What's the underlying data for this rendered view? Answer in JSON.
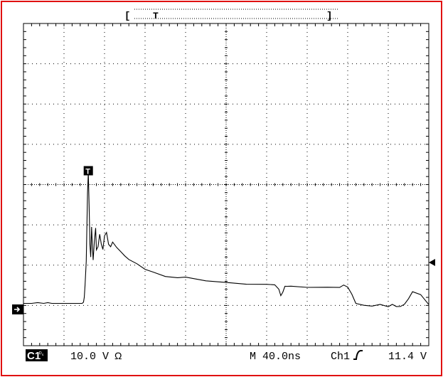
{
  "chart_data": {
    "type": "line",
    "title": "",
    "xlabel": "",
    "ylabel": "",
    "x_divisions": 10,
    "y_divisions": 8,
    "grid": "dotted",
    "xlim": [
      0,
      10
    ],
    "ylim": [
      -4,
      4
    ],
    "trigger_marker": "T",
    "channel_marker": "1",
    "series": [
      {
        "x": [
          0.0,
          0.2,
          0.35,
          0.5,
          0.6,
          0.7,
          0.8,
          1.0,
          1.2,
          1.3,
          1.4,
          1.45,
          1.48,
          1.5,
          1.52,
          1.55,
          1.58,
          1.6,
          1.62,
          1.64,
          1.66,
          1.68,
          1.7,
          1.72,
          1.75,
          1.78,
          1.8,
          1.84,
          1.88,
          1.92,
          1.96,
          2.0,
          2.05,
          2.1,
          2.15,
          2.2,
          2.3,
          2.4,
          2.5,
          2.6,
          2.8,
          3.0,
          3.2,
          3.5,
          3.8,
          4.0,
          4.5,
          5.0,
          5.5,
          6.0,
          6.2,
          6.3,
          6.35,
          6.4,
          6.45,
          6.5,
          6.6,
          7.0,
          7.5,
          7.8,
          7.9,
          8.0,
          8.1,
          8.2,
          8.4,
          8.6,
          8.8,
          9.0,
          9.1,
          9.2,
          9.3,
          9.4,
          9.5,
          9.6,
          9.8,
          10.0
        ],
        "y": [
          -2.95,
          -2.95,
          -2.93,
          -2.95,
          -2.93,
          -2.95,
          -2.95,
          -2.95,
          -2.95,
          -2.95,
          -2.95,
          -2.95,
          -2.92,
          -2.8,
          -2.5,
          -1.9,
          -0.2,
          0.3,
          -0.5,
          -1.5,
          -1.8,
          -1.05,
          -1.5,
          -1.85,
          -1.35,
          -1.05,
          -1.6,
          -1.5,
          -1.2,
          -1.45,
          -1.65,
          -1.3,
          -1.2,
          -1.5,
          -1.55,
          -1.45,
          -1.6,
          -1.7,
          -1.75,
          -1.85,
          -1.95,
          -2.1,
          -2.15,
          -2.25,
          -2.3,
          -2.33,
          -2.4,
          -2.45,
          -2.48,
          -2.48,
          -2.5,
          -2.6,
          -2.75,
          -2.65,
          -2.5,
          -2.52,
          -2.5,
          -2.52,
          -2.52,
          -2.52,
          -2.5,
          -2.55,
          -2.75,
          -2.95,
          -3.0,
          -3.02,
          -3.0,
          -3.0,
          -2.95,
          -3.0,
          -3.0,
          -2.95,
          -2.8,
          -2.62,
          -2.7,
          -2.98
        ]
      }
    ],
    "status": {
      "channel": "C1",
      "channel_sub": "ᴰₛ",
      "volts_per_div": "10.0 V",
      "ohm_symbol": "Ω",
      "timebase": "M 40.0ns",
      "trigger_source": "Ch1",
      "trigger_slope_icon": "rising-edge",
      "trigger_level": "11.4 V"
    }
  },
  "colors": {
    "frame": "#e01010",
    "trace": "#000000",
    "grid": "#000000"
  }
}
